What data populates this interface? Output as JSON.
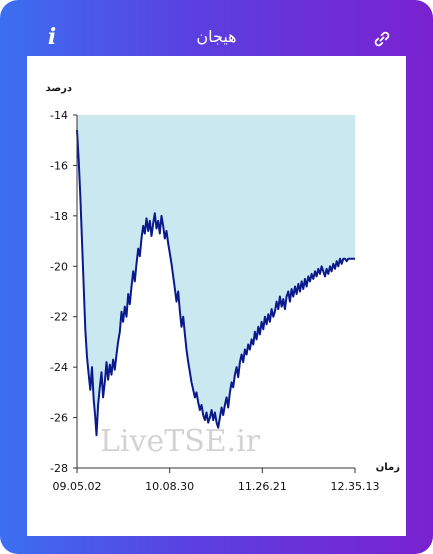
{
  "header": {
    "title": "هیجان",
    "info_label": "i"
  },
  "watermark": "LiveTSE.ir",
  "chart_data": {
    "type": "area",
    "ylabel": "درصد",
    "xlabel": "زمان",
    "ylim": [
      -28,
      -14
    ],
    "yticks": [
      -14,
      -16,
      -18,
      -20,
      -22,
      -24,
      -26,
      -28
    ],
    "xticks": [
      "09.05.02",
      "10.08.30",
      "11.26.21",
      "12.35.13"
    ],
    "xlim": [
      0,
      100
    ],
    "fill_color": "#c9e8f0",
    "line_color": "#0a1a8c",
    "grid": false,
    "points": [
      [
        0,
        -14.6
      ],
      [
        0.6,
        -15.8
      ],
      [
        1.2,
        -17.2
      ],
      [
        1.8,
        -19.0
      ],
      [
        2.4,
        -20.8
      ],
      [
        3.0,
        -22.5
      ],
      [
        3.6,
        -23.6
      ],
      [
        4.2,
        -24.3
      ],
      [
        4.8,
        -24.9
      ],
      [
        5.4,
        -24.0
      ],
      [
        6.0,
        -25.3
      ],
      [
        6.6,
        -26.0
      ],
      [
        7.0,
        -26.7
      ],
      [
        7.6,
        -25.5
      ],
      [
        8.2,
        -24.8
      ],
      [
        8.8,
        -24.2
      ],
      [
        9.4,
        -25.2
      ],
      [
        10.0,
        -24.6
      ],
      [
        10.6,
        -23.8
      ],
      [
        11.2,
        -24.5
      ],
      [
        11.8,
        -23.9
      ],
      [
        12.4,
        -24.3
      ],
      [
        13.0,
        -23.7
      ],
      [
        13.6,
        -24.1
      ],
      [
        14.2,
        -23.5
      ],
      [
        14.8,
        -23.0
      ],
      [
        15.4,
        -22.6
      ],
      [
        16.0,
        -21.8
      ],
      [
        16.6,
        -22.2
      ],
      [
        17.2,
        -21.6
      ],
      [
        17.8,
        -22.0
      ],
      [
        18.4,
        -21.1
      ],
      [
        19.0,
        -21.5
      ],
      [
        19.6,
        -20.8
      ],
      [
        20.2,
        -20.2
      ],
      [
        20.8,
        -20.6
      ],
      [
        21.4,
        -19.9
      ],
      [
        22.0,
        -19.3
      ],
      [
        22.6,
        -19.6
      ],
      [
        23.2,
        -18.9
      ],
      [
        23.8,
        -18.4
      ],
      [
        24.4,
        -18.7
      ],
      [
        25.0,
        -18.1
      ],
      [
        25.6,
        -18.6
      ],
      [
        26.2,
        -18.2
      ],
      [
        26.8,
        -18.8
      ],
      [
        27.4,
        -18.3
      ],
      [
        28.0,
        -17.9
      ],
      [
        28.6,
        -18.5
      ],
      [
        29.2,
        -18.2
      ],
      [
        29.8,
        -18.7
      ],
      [
        30.4,
        -18.0
      ],
      [
        31.0,
        -18.4
      ],
      [
        31.6,
        -18.9
      ],
      [
        32.2,
        -18.6
      ],
      [
        32.8,
        -19.1
      ],
      [
        33.4,
        -19.5
      ],
      [
        34.0,
        -19.9
      ],
      [
        34.6,
        -20.4
      ],
      [
        35.2,
        -20.9
      ],
      [
        35.8,
        -21.4
      ],
      [
        36.4,
        -21.0
      ],
      [
        37.0,
        -21.8
      ],
      [
        37.6,
        -22.4
      ],
      [
        38.2,
        -22.0
      ],
      [
        38.8,
        -22.7
      ],
      [
        39.4,
        -23.3
      ],
      [
        40.0,
        -23.8
      ],
      [
        40.6,
        -24.2
      ],
      [
        41.2,
        -24.6
      ],
      [
        41.8,
        -24.9
      ],
      [
        42.4,
        -25.2
      ],
      [
        43.0,
        -25.0
      ],
      [
        43.6,
        -25.4
      ],
      [
        44.2,
        -25.7
      ],
      [
        44.8,
        -25.5
      ],
      [
        45.4,
        -25.9
      ],
      [
        46.0,
        -26.1
      ],
      [
        46.6,
        -25.8
      ],
      [
        47.2,
        -26.2
      ],
      [
        47.8,
        -26.0
      ],
      [
        48.4,
        -25.7
      ],
      [
        49.0,
        -26.1
      ],
      [
        49.6,
        -25.8
      ],
      [
        50.2,
        -26.2
      ],
      [
        50.8,
        -26.4
      ],
      [
        51.4,
        -26.0
      ],
      [
        52.0,
        -25.6
      ],
      [
        52.6,
        -25.9
      ],
      [
        53.2,
        -25.5
      ],
      [
        53.8,
        -25.2
      ],
      [
        54.4,
        -25.6
      ],
      [
        55.0,
        -25.0
      ],
      [
        55.6,
        -24.6
      ],
      [
        56.2,
        -24.8
      ],
      [
        56.8,
        -24.3
      ],
      [
        57.4,
        -24.0
      ],
      [
        58.0,
        -24.4
      ],
      [
        58.6,
        -23.8
      ],
      [
        59.2,
        -23.5
      ],
      [
        59.8,
        -23.8
      ],
      [
        60.4,
        -23.3
      ],
      [
        61.0,
        -23.5
      ],
      [
        61.6,
        -23.1
      ],
      [
        62.2,
        -23.3
      ],
      [
        62.8,
        -22.9
      ],
      [
        63.4,
        -23.1
      ],
      [
        64.0,
        -22.6
      ],
      [
        64.6,
        -22.9
      ],
      [
        65.2,
        -22.4
      ],
      [
        65.8,
        -22.7
      ],
      [
        66.4,
        -22.2
      ],
      [
        67.0,
        -22.5
      ],
      [
        67.6,
        -22.0
      ],
      [
        68.2,
        -22.3
      ],
      [
        68.8,
        -21.9
      ],
      [
        69.4,
        -22.2
      ],
      [
        70.0,
        -21.7
      ],
      [
        70.6,
        -22.0
      ],
      [
        71.2,
        -21.8
      ],
      [
        71.8,
        -21.4
      ],
      [
        72.4,
        -21.7
      ],
      [
        73.0,
        -21.2
      ],
      [
        73.6,
        -21.6
      ],
      [
        74.2,
        -21.3
      ],
      [
        74.8,
        -21.7
      ],
      [
        75.4,
        -21.2
      ],
      [
        76.0,
        -21.0
      ],
      [
        76.6,
        -21.4
      ],
      [
        77.2,
        -20.9
      ],
      [
        77.8,
        -21.2
      ],
      [
        78.4,
        -20.8
      ],
      [
        79.0,
        -21.1
      ],
      [
        79.6,
        -20.7
      ],
      [
        80.2,
        -21.0
      ],
      [
        80.8,
        -20.6
      ],
      [
        81.4,
        -20.9
      ],
      [
        82.0,
        -20.5
      ],
      [
        82.6,
        -20.8
      ],
      [
        83.2,
        -20.4
      ],
      [
        83.8,
        -20.6
      ],
      [
        84.4,
        -20.3
      ],
      [
        85.0,
        -20.5
      ],
      [
        85.6,
        -20.2
      ],
      [
        86.2,
        -20.4
      ],
      [
        86.8,
        -20.1
      ],
      [
        87.4,
        -20.3
      ],
      [
        88.0,
        -20.0
      ],
      [
        88.6,
        -20.2
      ],
      [
        89.2,
        -20.4
      ],
      [
        89.8,
        -20.1
      ],
      [
        90.4,
        -20.3
      ],
      [
        91.0,
        -20.0
      ],
      [
        91.6,
        -20.2
      ],
      [
        92.2,
        -19.9
      ],
      [
        92.8,
        -20.1
      ],
      [
        93.4,
        -19.8
      ],
      [
        94.0,
        -20.0
      ],
      [
        94.6,
        -19.7
      ],
      [
        95.2,
        -19.9
      ],
      [
        95.8,
        -19.7
      ],
      [
        96.4,
        -19.7
      ],
      [
        97.0,
        -19.8
      ],
      [
        97.6,
        -19.7
      ],
      [
        100,
        -19.7
      ]
    ]
  }
}
